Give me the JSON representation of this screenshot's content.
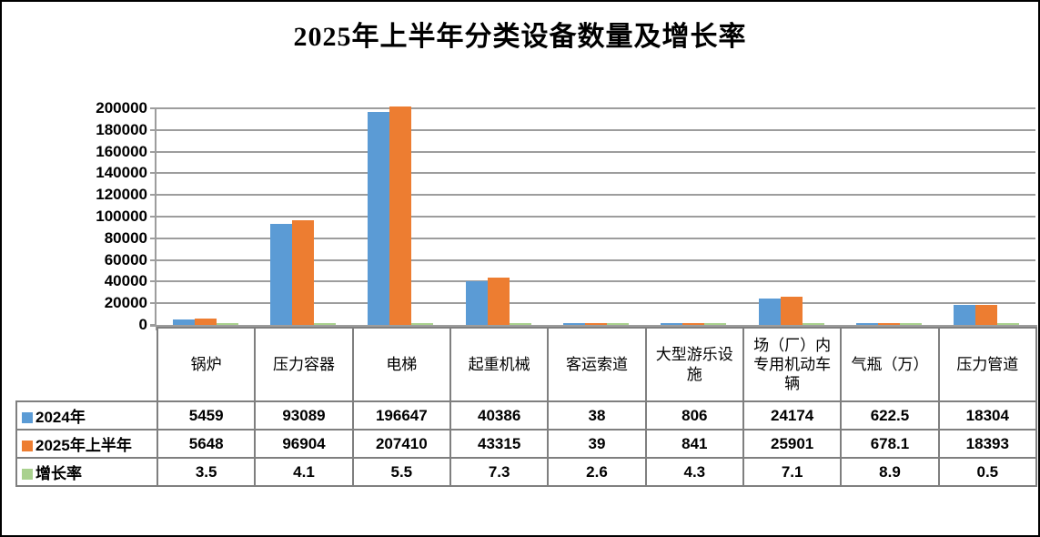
{
  "chart_data": {
    "type": "bar",
    "title": "2025年上半年分类设备数量及增长率",
    "categories": [
      "锅炉",
      "压力容器",
      "电梯",
      "起重机械",
      "客运索道",
      "大型游乐设施",
      "场（厂）内专用机动车辆",
      "气瓶（万）",
      "压力管道"
    ],
    "series": [
      {
        "name": "2024年",
        "color": "#5b9bd5",
        "values": [
          5459,
          93089,
          196647,
          40386,
          38,
          806,
          24174,
          622.5,
          18304
        ]
      },
      {
        "name": "2025年上半年",
        "color": "#ed7d31",
        "values": [
          5648,
          96904,
          207410,
          43315,
          39,
          841,
          25901,
          678.1,
          18393
        ]
      },
      {
        "name": "增长率",
        "color": "#a9d18e",
        "values": [
          3.5,
          4.1,
          5.5,
          7.3,
          2.6,
          4.3,
          7.1,
          8.9,
          0.5
        ]
      }
    ],
    "ylim": [
      0,
      200000
    ],
    "ytick_step": 20000,
    "ytick_labels": [
      "0",
      "20000",
      "40000",
      "60000",
      "80000",
      "100000",
      "120000",
      "140000",
      "160000",
      "180000",
      "200000"
    ],
    "grid": true,
    "legend_position": "table-left",
    "colors": {
      "axis": "#9d9d9d",
      "table_border": "#7f7f7f",
      "background": "#ffffff",
      "text": "#000000"
    }
  }
}
